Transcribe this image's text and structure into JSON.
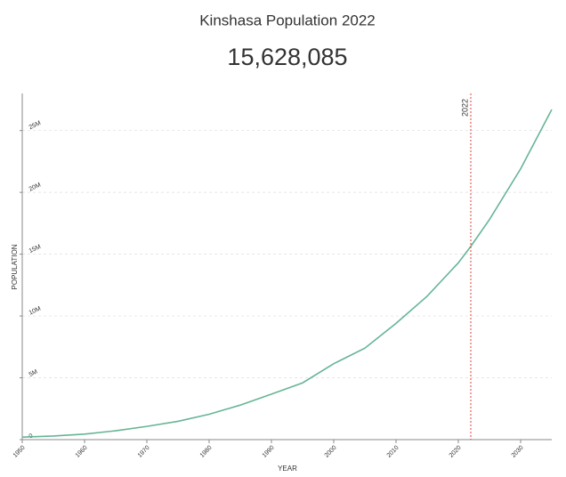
{
  "chart_data": {
    "type": "line",
    "title": "Kinshasa Population 2022",
    "subtitle": "15,628,085",
    "x_label": "YEAR",
    "y_label": "POPULATION",
    "x": [
      1950,
      1955,
      1960,
      1965,
      1970,
      1975,
      1980,
      1985,
      1990,
      1995,
      2000,
      2005,
      2010,
      2015,
      2020,
      2022,
      2025,
      2030,
      2035
    ],
    "series": [
      {
        "name": "Population",
        "color": "#66b596",
        "values": [
          202000,
          292000,
          443000,
          717000,
          1070000,
          1482000,
          2053000,
          2793000,
          3683000,
          4590000,
          6140000,
          7400000,
          9400000,
          11600000,
          14300000,
          15628085,
          17800000,
          21900000,
          26700000
        ]
      }
    ],
    "xlim": [
      1950,
      2035
    ],
    "xticks": [
      1950,
      1960,
      1970,
      1980,
      1990,
      2000,
      2010,
      2020,
      2030
    ],
    "ylim": [
      0,
      28000000
    ],
    "yticks": [
      0,
      {
        "value": 5000000,
        "label": "5M"
      },
      {
        "value": 10000000,
        "label": "10M"
      },
      {
        "value": 15000000,
        "label": "15M"
      },
      {
        "value": 20000000,
        "label": "20M"
      },
      {
        "value": 25000000,
        "label": "25M"
      }
    ],
    "grid": true,
    "highlight_x": 2022,
    "highlight_color": "#e0403a"
  }
}
